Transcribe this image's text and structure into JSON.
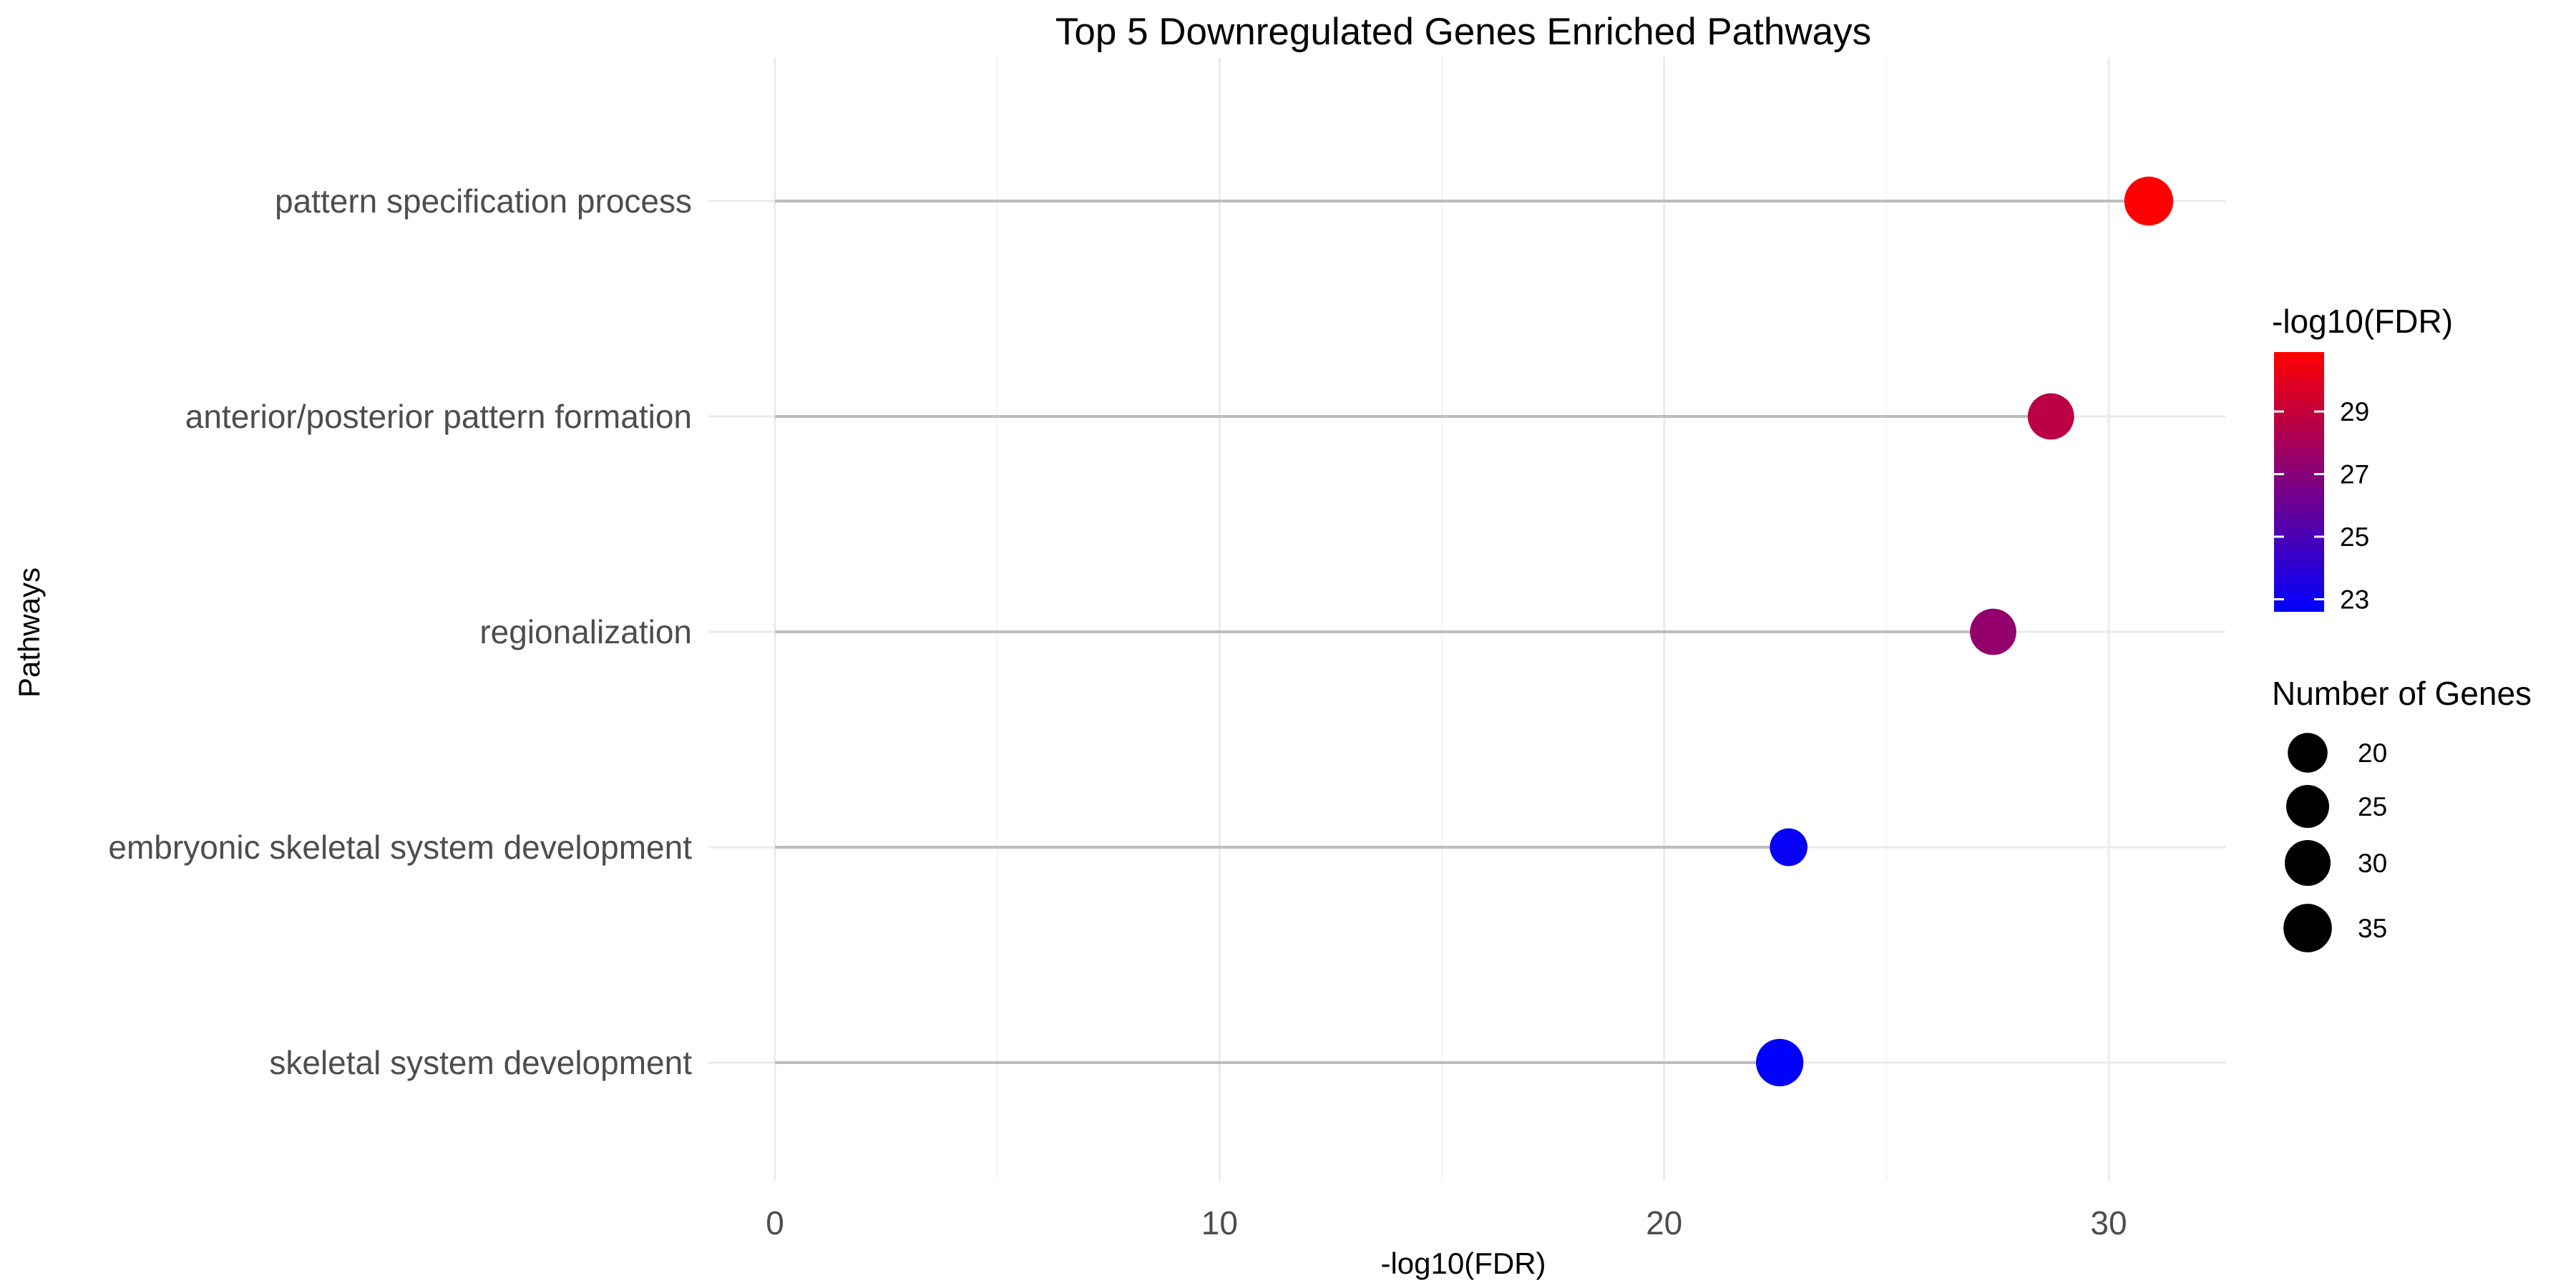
{
  "chart_data": {
    "type": "lollipop",
    "title": "Top 5 Downregulated Genes Enriched Pathways",
    "xlabel": "-log10(FDR)",
    "ylabel": "Pathways",
    "xlim": [
      -1.2,
      32.8
    ],
    "xticks": [
      0,
      10,
      20,
      30
    ],
    "grid": true,
    "categories": [
      "pattern specification process",
      "anterior/posterior pattern formation",
      "regionalization",
      "embryonic skeletal system development",
      "skeletal system development"
    ],
    "values": [
      30.9,
      28.7,
      27.4,
      22.8,
      22.6
    ],
    "gene_counts": [
      36,
      31,
      31,
      17,
      33
    ],
    "legend_position": "right",
    "color_legend": {
      "title": "-log10(FDR)",
      "ticks": [
        23,
        25,
        27,
        29
      ],
      "range": [
        22.6,
        30.9
      ],
      "low_color": "#0000ff",
      "high_color": "#ff0000"
    },
    "size_legend": {
      "title": "Number of Genes",
      "entries": [
        20,
        25,
        30,
        35
      ]
    },
    "colors": {
      "segment": "#bdbdbd",
      "grid_major": "#ebebeb",
      "grid_minor": "#f4f4f4",
      "legend_key": "#000000"
    }
  }
}
